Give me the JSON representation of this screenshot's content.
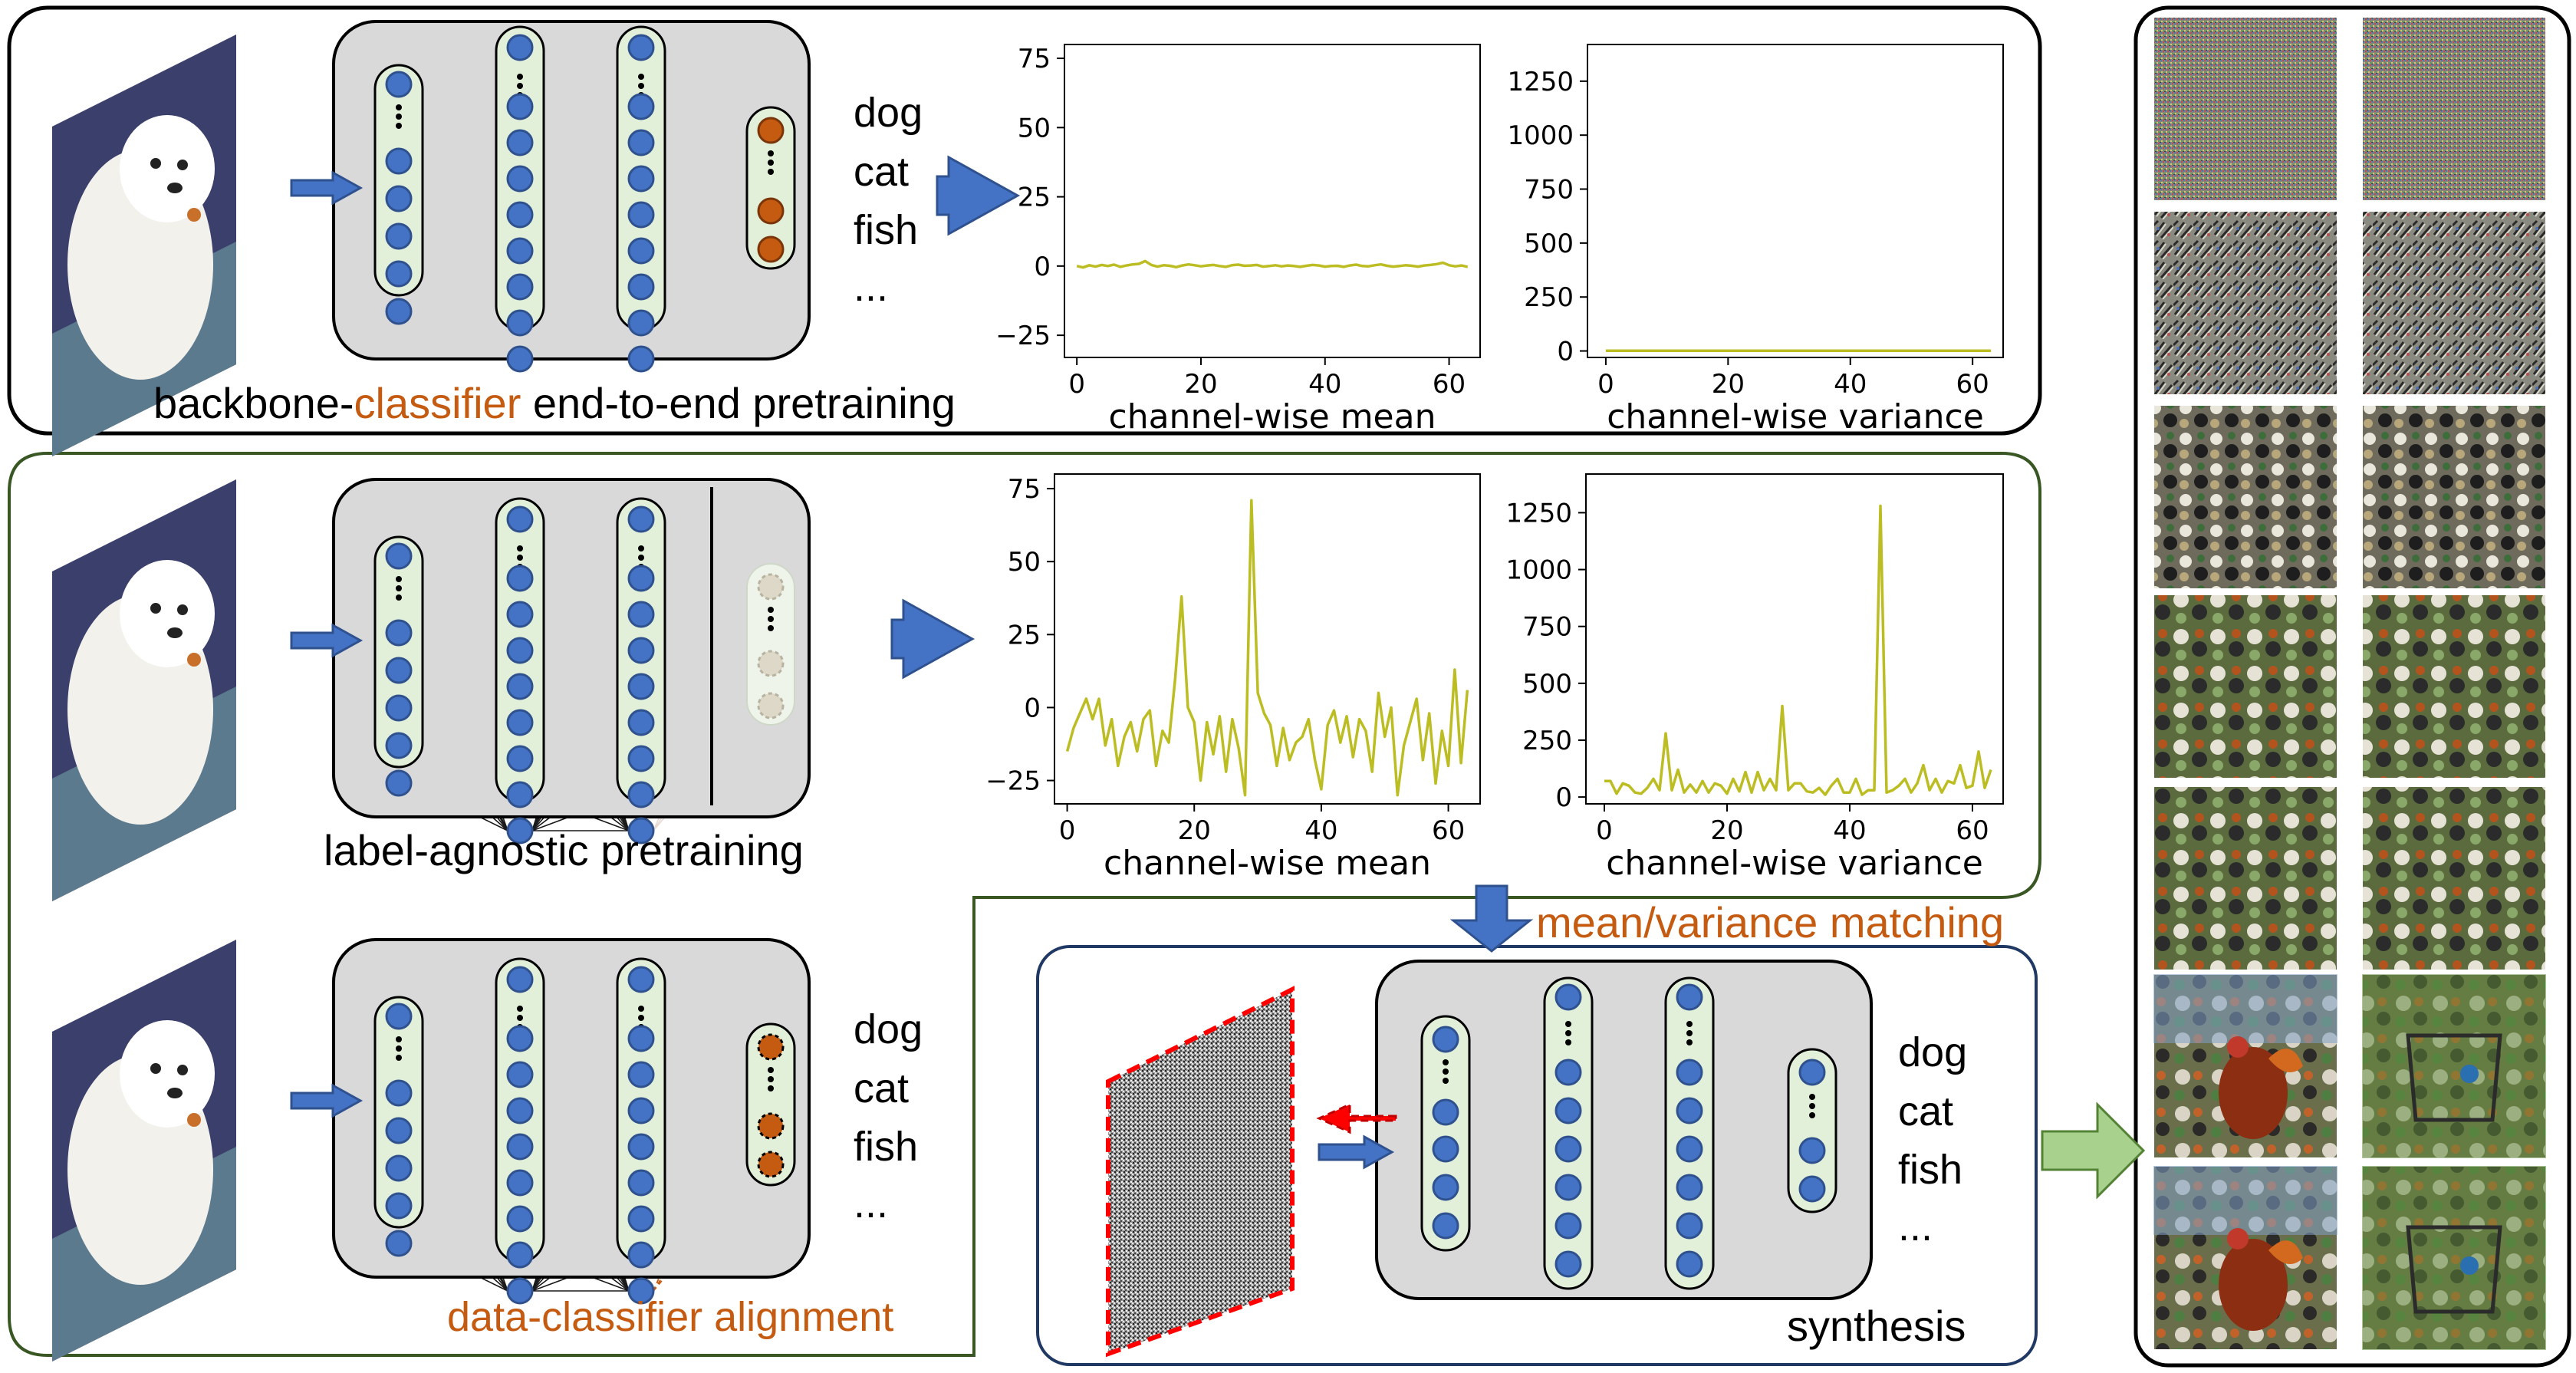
{
  "colors": {
    "orange_text": "#c55a11",
    "node_blue": "#4472c4",
    "node_orange": "#c55a11",
    "layer_green": "#e2f0d9",
    "net_bg": "#d9d9d9",
    "plot_line": "#bcbd22",
    "arrow_blue": "#4472c4",
    "arrow_green": "#a9d18e",
    "panel_border_green": "#385723",
    "panel_border_blue": "#1f3864",
    "noise_border_red": "#ff0000"
  },
  "icons": {
    "input_photo": "white-dog-photo",
    "noise_image": "random-noise-image"
  },
  "row1": {
    "label_prefix": "backbone-",
    "label_orange": "classifier",
    "label_suffix": " end-to-end pretraining",
    "classes": [
      "dog",
      "cat",
      "fish",
      "..."
    ]
  },
  "row2": {
    "label": "label-agnostic pretraining"
  },
  "row3": {
    "label": "data-classifier alignment",
    "classes": [
      "dog",
      "cat",
      "fish",
      "..."
    ]
  },
  "matching_label": "mean/variance matching",
  "synthesis": {
    "label": "synthesis",
    "classes": [
      "dog",
      "cat",
      "fish",
      "..."
    ]
  },
  "chart_data": [
    {
      "type": "line",
      "xlabel": "channel-wise mean",
      "x_ticks": [
        0,
        20,
        40,
        60
      ],
      "y_ticks": [
        -25,
        0,
        25,
        50,
        75
      ],
      "xlim": [
        -2,
        65
      ],
      "ylim": [
        -33,
        80
      ],
      "grid": false,
      "x": [
        0,
        1,
        2,
        3,
        4,
        5,
        6,
        7,
        8,
        9,
        10,
        11,
        12,
        13,
        14,
        15,
        16,
        17,
        18,
        19,
        20,
        21,
        22,
        23,
        24,
        25,
        26,
        27,
        28,
        29,
        30,
        31,
        32,
        33,
        34,
        35,
        36,
        37,
        38,
        39,
        40,
        41,
        42,
        43,
        44,
        45,
        46,
        47,
        48,
        49,
        50,
        51,
        52,
        53,
        54,
        55,
        56,
        57,
        58,
        59,
        60,
        61,
        62,
        63
      ],
      "values": [
        0,
        -0.5,
        0.3,
        -0.2,
        0.4,
        0,
        0.5,
        -0.3,
        0.2,
        0.6,
        0.8,
        1.8,
        0.4,
        -0.2,
        0.3,
        0.1,
        -0.4,
        0.2,
        0.6,
        0.3,
        -0.1,
        0.2,
        0.4,
        0,
        -0.3,
        0.3,
        0.5,
        0.1,
        0.2,
        0.4,
        -0.2,
        0,
        0.3,
        -0.1,
        0.2,
        0,
        -0.3,
        0.1,
        0.4,
        0.2,
        -0.2,
        0,
        0.1,
        -0.3,
        0.2,
        0.5,
        0,
        -0.1,
        0.3,
        0.6,
        0.1,
        -0.2,
        0,
        0.3,
        0.1,
        -0.2,
        0.2,
        0.4,
        0.7,
        1.2,
        0.3,
        -0.1,
        0.2,
        -0.3
      ]
    },
    {
      "type": "line",
      "xlabel": "channel-wise variance",
      "x_ticks": [
        0,
        20,
        40,
        60
      ],
      "y_ticks": [
        0,
        250,
        500,
        750,
        1000,
        1250
      ],
      "xlim": [
        -3,
        65
      ],
      "ylim": [
        -30,
        1420
      ],
      "grid": false,
      "x": [
        0,
        63
      ],
      "values": [
        1,
        1
      ]
    },
    {
      "type": "line",
      "xlabel": "channel-wise mean",
      "x_ticks": [
        0,
        20,
        40,
        60
      ],
      "y_ticks": [
        -25,
        0,
        25,
        50,
        75
      ],
      "xlim": [
        -2,
        65
      ],
      "ylim": [
        -33,
        80
      ],
      "grid": false,
      "x": [
        0,
        1,
        2,
        3,
        4,
        5,
        6,
        7,
        8,
        9,
        10,
        11,
        12,
        13,
        14,
        15,
        16,
        17,
        18,
        19,
        20,
        21,
        22,
        23,
        24,
        25,
        26,
        27,
        28,
        29,
        30,
        31,
        32,
        33,
        34,
        35,
        36,
        37,
        38,
        39,
        40,
        41,
        42,
        43,
        44,
        45,
        46,
        47,
        48,
        49,
        50,
        51,
        52,
        53,
        54,
        55,
        56,
        57,
        58,
        59,
        60,
        61,
        62,
        63
      ],
      "values": [
        -15,
        -7,
        -2,
        3,
        -4,
        3,
        -13,
        -4,
        -20,
        -10,
        -5,
        -15,
        -4,
        -1,
        -20,
        -8,
        -12,
        10,
        38,
        0,
        -5,
        -25,
        -5,
        -16,
        -3,
        -22,
        -4,
        -14,
        -30,
        71,
        5,
        -2,
        -6,
        -20,
        -7,
        -18,
        -12,
        -10,
        -4,
        -18,
        -28,
        -6,
        -1,
        -12,
        -3,
        -17,
        -4,
        -8,
        -22,
        5,
        -10,
        0,
        -30,
        -13,
        -5,
        3,
        -18,
        -2,
        -26,
        -8,
        -20,
        13,
        -19,
        6
      ]
    },
    {
      "type": "line",
      "xlabel": "channel-wise variance",
      "x_ticks": [
        0,
        20,
        40,
        60
      ],
      "y_ticks": [
        0,
        250,
        500,
        750,
        1000,
        1250
      ],
      "xlim": [
        -3,
        65
      ],
      "ylim": [
        -30,
        1420
      ],
      "grid": false,
      "x": [
        0,
        1,
        2,
        3,
        4,
        5,
        6,
        7,
        8,
        9,
        10,
        11,
        12,
        13,
        14,
        15,
        16,
        17,
        18,
        19,
        20,
        21,
        22,
        23,
        24,
        25,
        26,
        27,
        28,
        29,
        30,
        31,
        32,
        33,
        34,
        35,
        36,
        37,
        38,
        39,
        40,
        41,
        42,
        43,
        44,
        45,
        46,
        47,
        48,
        49,
        50,
        51,
        52,
        53,
        54,
        55,
        56,
        57,
        58,
        59,
        60,
        61,
        62,
        63
      ],
      "values": [
        70,
        70,
        15,
        60,
        50,
        20,
        15,
        40,
        80,
        30,
        280,
        30,
        120,
        20,
        55,
        20,
        70,
        20,
        60,
        50,
        15,
        80,
        25,
        110,
        20,
        110,
        30,
        80,
        30,
        400,
        30,
        60,
        60,
        25,
        20,
        40,
        10,
        50,
        80,
        20,
        20,
        80,
        10,
        30,
        30,
        1280,
        20,
        30,
        50,
        80,
        20,
        60,
        140,
        30,
        80,
        20,
        70,
        60,
        140,
        40,
        50,
        200,
        40,
        120
      ]
    }
  ],
  "progression_images": [
    "noise-iteration-1",
    "noise-iteration-2",
    "synth-stage-2-a",
    "synth-stage-2-b",
    "synth-stage-3-a",
    "synth-stage-3-b",
    "synth-stage-4-a",
    "synth-stage-4-b",
    "synth-stage-5-a",
    "synth-stage-5-b",
    "synth-stage-6-a",
    "synth-stage-6-b",
    "synth-stage-7-a",
    "synth-stage-7-b"
  ]
}
